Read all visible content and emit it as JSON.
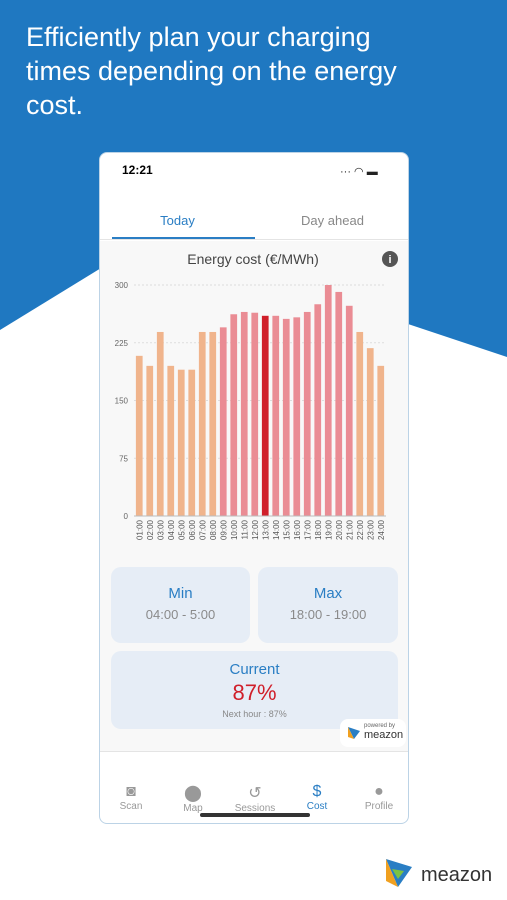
{
  "header": {
    "title": "Efficiently plan your charging times depending on the energy cost."
  },
  "status": {
    "time": "12:21"
  },
  "tabs": [
    "Today",
    "Day ahead"
  ],
  "chart_data": {
    "type": "bar",
    "title": "Energy cost (€/MWh)",
    "categories": [
      "01:00",
      "02:00",
      "03:00",
      "04:00",
      "05:00",
      "06:00",
      "07:00",
      "08:00",
      "09:00",
      "10:00",
      "11:00",
      "12:00",
      "13:00",
      "14:00",
      "15:00",
      "16:00",
      "17:00",
      "18:00",
      "19:00",
      "20:00",
      "21:00",
      "22:00",
      "23:00",
      "24:00"
    ],
    "values": [
      208,
      195,
      239,
      195,
      190,
      190,
      239,
      239,
      245,
      262,
      265,
      264,
      260,
      260,
      256,
      258,
      265,
      275,
      300,
      291,
      273,
      239,
      218,
      195
    ],
    "colors": [
      "#f0b48c",
      "#f0b48c",
      "#f0b48c",
      "#f0b48c",
      "#f0b48c",
      "#f0b48c",
      "#f0b48c",
      "#f0b48c",
      "#ea8c94",
      "#ea8c94",
      "#ea8c94",
      "#ea8c94",
      "#d01f2a",
      "#ea8c94",
      "#ea8c94",
      "#ea8c94",
      "#ea8c94",
      "#ea8c94",
      "#ea8c94",
      "#ea8c94",
      "#ea8c94",
      "#f0b48c",
      "#f0b48c",
      "#f0b48c"
    ],
    "ylim": [
      0,
      300
    ],
    "yticks": [
      0,
      75,
      150,
      225,
      300
    ],
    "grid": true
  },
  "cards": {
    "min": {
      "label": "Min",
      "range": "04:00 - 5:00"
    },
    "max": {
      "label": "Max",
      "range": "18:00 - 19:00"
    },
    "current": {
      "label": "Current",
      "value": "87%",
      "next": "Next hour : 87%"
    }
  },
  "powered": {
    "by": "powered by",
    "brand": "meazon"
  },
  "nav": [
    "Scan",
    "Map",
    "Sessions",
    "Cost",
    "Profile"
  ],
  "logo": "meazon"
}
